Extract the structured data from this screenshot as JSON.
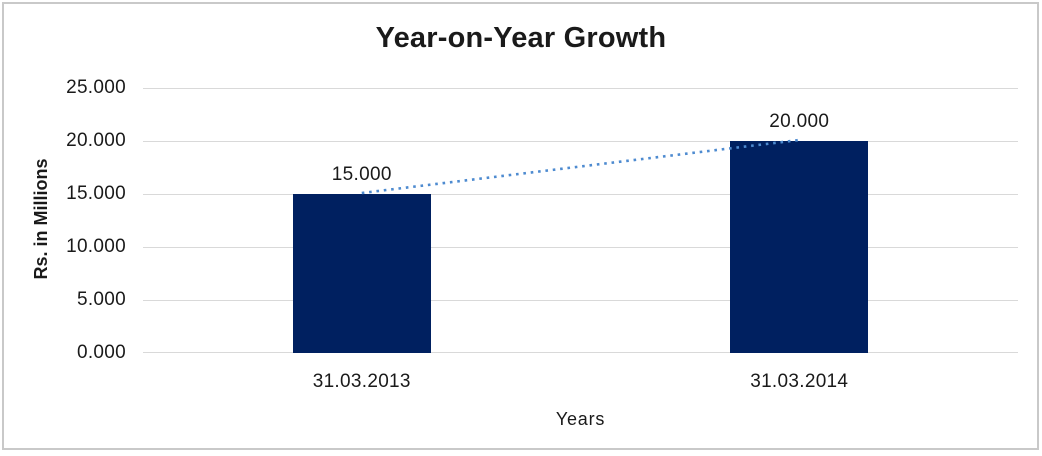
{
  "chart_data": {
    "type": "bar",
    "title": "Year-on-Year Growth",
    "xlabel": "Years",
    "ylabel": "Rs. in Millions",
    "categories": [
      "31.03.2013",
      "31.03.2014"
    ],
    "values": [
      15000,
      20000
    ],
    "data_labels": [
      "15.000",
      "20.000"
    ],
    "ytick_labels": [
      "25.000",
      "20.000",
      "15.000",
      "10.000",
      "5.000",
      "0.000"
    ],
    "ylim": [
      0,
      25000
    ],
    "grid": "horizontal",
    "legend": "none",
    "trendline": {
      "style": "dotted",
      "connects": [
        "31.03.2013",
        "31.03.2014"
      ]
    }
  },
  "colors": {
    "bar": "#002060",
    "trendline": "#4e8bd0",
    "gridline": "#d9d9d9",
    "text": "#1a1a1a",
    "frame_border": "#c9c9c9",
    "background": "#ffffff"
  }
}
